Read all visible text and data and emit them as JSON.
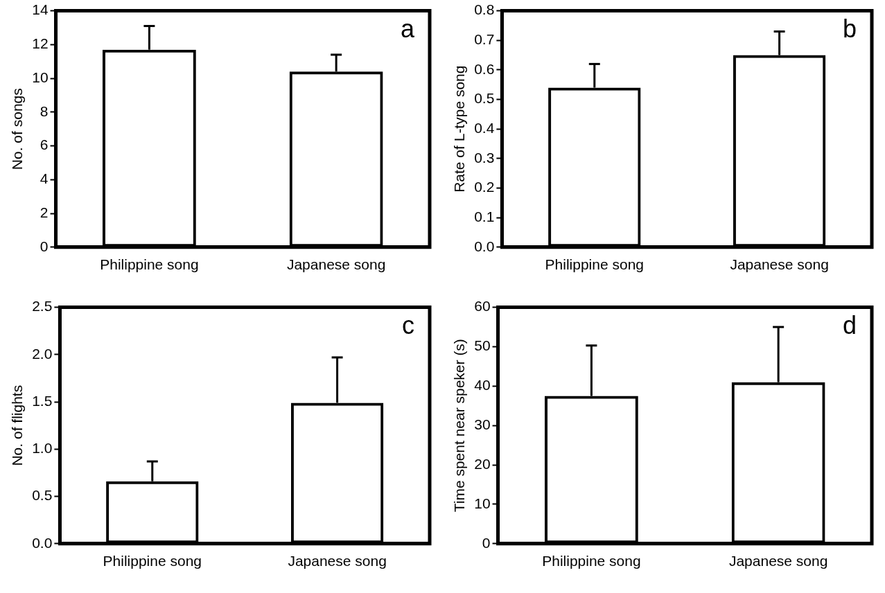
{
  "chart_data": [
    {
      "type": "bar",
      "ylabel": "No. of songs",
      "categories": [
        "Philippine song",
        "Japanese song"
      ],
      "values": [
        11.7,
        10.4
      ],
      "errors": [
        [
          11.7,
          13.1
        ],
        [
          10.4,
          11.4
        ]
      ],
      "color": "#000000",
      "ylim": [
        0,
        14
      ],
      "yticks": [
        0,
        2,
        4,
        6,
        8,
        10,
        12,
        14
      ],
      "grid": false,
      "legend": false,
      "annotations": [
        "a"
      ]
    },
    {
      "type": "bar",
      "ylabel": "Rate of L-type song",
      "categories": [
        "Philippine song",
        "Japanese song"
      ],
      "values": [
        0.54,
        0.65
      ],
      "errors": [
        [
          0.54,
          0.62
        ],
        [
          0.65,
          0.73
        ]
      ],
      "color": "#000000",
      "ylim": [
        0,
        0.8
      ],
      "yticks": [
        {
          "value": 0,
          "label": "0.0"
        },
        0.1,
        0.2,
        0.3,
        0.4,
        0.5,
        0.6,
        0.7,
        0.8
      ],
      "grid": false,
      "legend": false,
      "annotations": [
        "b"
      ]
    },
    {
      "type": "bar",
      "ylabel": "No. of flights",
      "categories": [
        "Philippine song",
        "Japanese song"
      ],
      "values": [
        0.66,
        1.49
      ],
      "errors": [
        [
          0.66,
          0.87
        ],
        [
          1.49,
          1.97
        ]
      ],
      "color": "#000000",
      "ylim": [
        0,
        2.5
      ],
      "yticks": [
        {
          "value": 0,
          "label": "0.0"
        },
        0.5,
        {
          "value": 1,
          "label": "1.0"
        },
        1.5,
        {
          "value": 2,
          "label": "2.0"
        },
        2.5
      ],
      "grid": false,
      "legend": false,
      "annotations": [
        "c"
      ]
    },
    {
      "type": "bar",
      "ylabel": "Time spent near speker (s)",
      "categories": [
        "Philippine song",
        "Japanese song"
      ],
      "values": [
        37.5,
        41
      ],
      "errors": [
        [
          37.5,
          50.3
        ],
        [
          41,
          55
        ]
      ],
      "color": "#000000",
      "ylim": [
        0,
        60
      ],
      "yticks": [
        0,
        10,
        20,
        30,
        40,
        50,
        60
      ],
      "grid": false,
      "legend": false,
      "annotations": [
        "d"
      ]
    }
  ]
}
